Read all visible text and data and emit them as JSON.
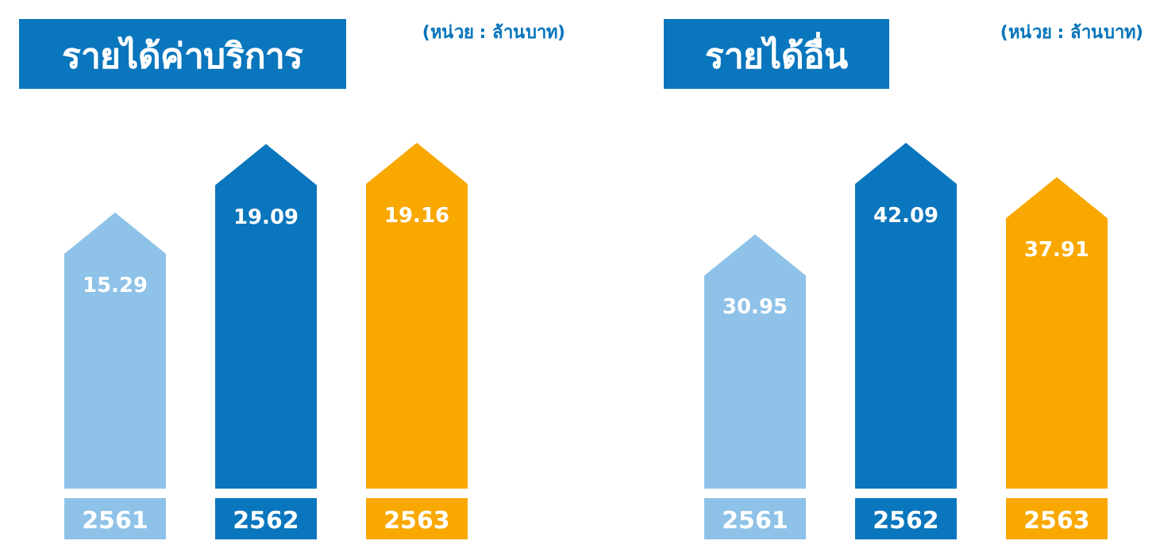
{
  "chart_data": [
    {
      "type": "bar",
      "title": "รายได้ค่าบริการ",
      "annotations": [
        "(หน่วย : ล้านบาท)"
      ],
      "categories": [
        "2561",
        "2562",
        "2563"
      ],
      "values": [
        15.29,
        19.09,
        19.16
      ],
      "colors": [
        "#8ec2e8",
        "#0a76bd",
        "#f9a800"
      ],
      "data_labels": true
    },
    {
      "type": "bar",
      "title": "รายได้อื่น",
      "annotations": [
        "(หน่วย : ล้านบาท)"
      ],
      "categories": [
        "2561",
        "2562",
        "2563"
      ],
      "values": [
        30.95,
        42.09,
        37.91
      ],
      "colors": [
        "#8ec2e8",
        "#0a76bd",
        "#f9a800"
      ],
      "data_labels": true
    }
  ]
}
